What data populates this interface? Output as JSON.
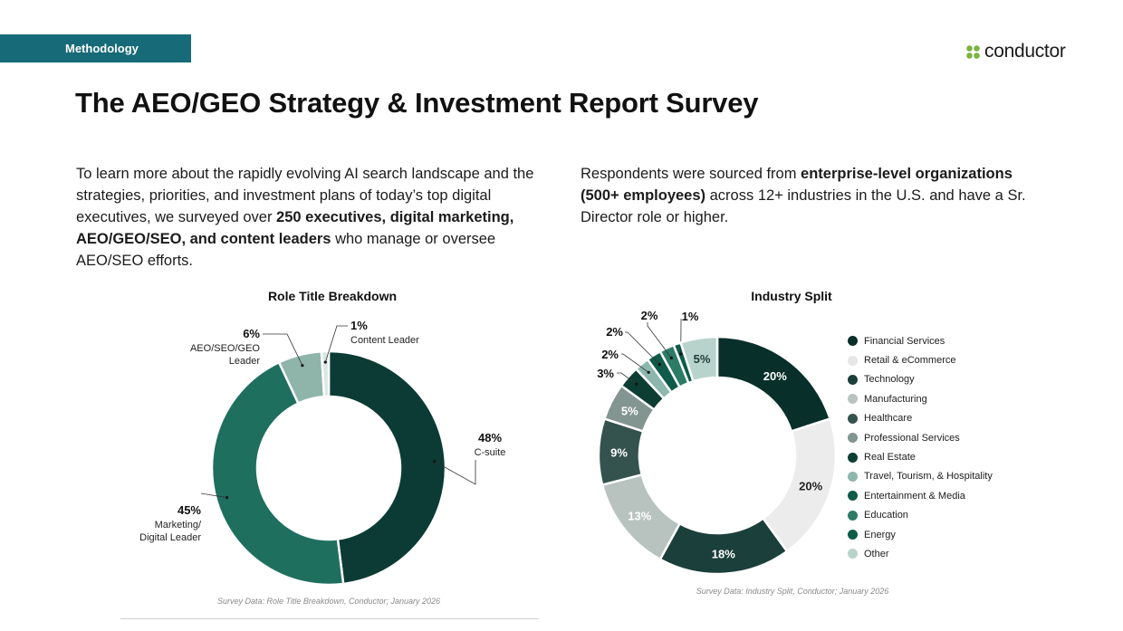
{
  "header": {
    "section_tag": "Methodology",
    "logo_text": "conductor",
    "title": "The AEO/GEO Strategy & Investment Report Survey"
  },
  "intro_left": [
    {
      "text": "To learn more about the rapidly evolving AI search landscape and the strategies, priorities, and investment plans of today’s top digital executives, we surveyed over ",
      "bold": false
    },
    {
      "text": "250 executives, digital marketing, AEO/GEO/SEO, and content leaders",
      "bold": true
    },
    {
      "text": " who manage or oversee AEO/SEO efforts.",
      "bold": false
    }
  ],
  "intro_right": [
    {
      "text": "Respondents were sourced from ",
      "bold": false
    },
    {
      "text": "enterprise-level organizations (500+ employees)",
      "bold": true
    },
    {
      "text": " across 12+ industries in the U.S. and have a Sr. Director role or higher.",
      "bold": false
    }
  ],
  "chart_data": [
    {
      "type": "pie",
      "title": "Role Title Breakdown",
      "source": "Survey Data: Role Title Breakdown, Conductor; January 2026",
      "series": [
        {
          "name": "C-suite",
          "value": 48,
          "label": "48%",
          "color": "#0b3b34"
        },
        {
          "name": "Marketing/ Digital Leader",
          "value": 45,
          "label": "45%",
          "color": "#1f6f5f"
        },
        {
          "name": "AEO/SEO/GEO Leader",
          "value": 6,
          "label": "6%",
          "color": "#8fb5ab"
        },
        {
          "name": "Content Leader",
          "value": 1,
          "label": "1%",
          "color": "#d9e6e2"
        }
      ]
    },
    {
      "type": "pie",
      "title": "Industry Split",
      "source": "Survey Data: Industry Split, Conductor; January 2026",
      "series": [
        {
          "name": "Financial Services",
          "value": 20,
          "label": "20%",
          "color": "#082f29"
        },
        {
          "name": "Retail & eCommerce",
          "value": 20,
          "label": "20%",
          "color": "#ececec"
        },
        {
          "name": "Technology",
          "value": 18,
          "label": "18%",
          "color": "#1b3f3b"
        },
        {
          "name": "Manufacturing",
          "value": 13,
          "label": "13%",
          "color": "#b8c3c0"
        },
        {
          "name": "Healthcare",
          "value": 9,
          "label": "9%",
          "color": "#34524e"
        },
        {
          "name": "Professional Services",
          "value": 5,
          "label": "5%",
          "color": "#839590"
        },
        {
          "name": "Real Estate",
          "value": 3,
          "label": "3%",
          "color": "#0d3e34"
        },
        {
          "name": "Travel, Tourism, & Hospitality",
          "value": 2,
          "label": "2%",
          "color": "#8db7ad"
        },
        {
          "name": "Entertainment & Media",
          "value": 2,
          "label": "2%",
          "color": "#0f5a48"
        },
        {
          "name": "Education",
          "value": 2,
          "label": "2%",
          "color": "#2c7b66"
        },
        {
          "name": "Energy",
          "value": 1,
          "label": "1%",
          "color": "#0c5c48"
        },
        {
          "name": "Other",
          "value": 5,
          "label": "5%",
          "color": "#b8d3cb"
        }
      ]
    }
  ]
}
